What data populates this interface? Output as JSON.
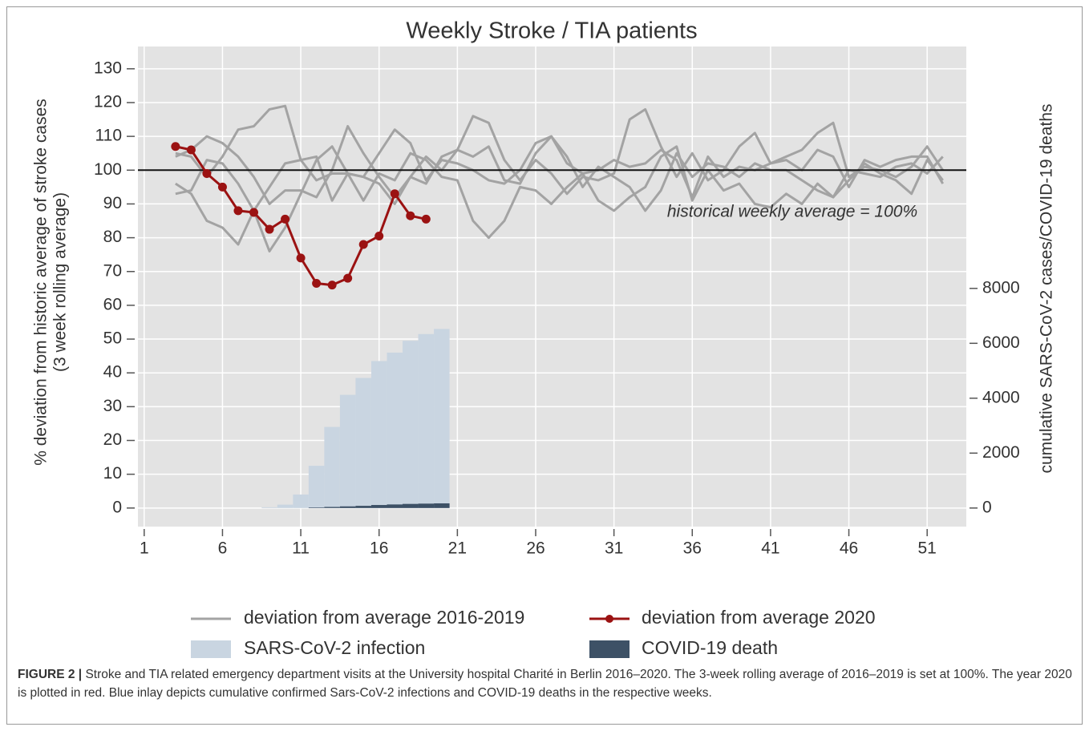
{
  "chart_data": {
    "type": "line",
    "title": "Weekly Stroke / TIA patients",
    "y_label": "% deviation from historic average of stroke cases",
    "y_label_sub": "(3 week rolling average)",
    "y2_label": "cumulative SARS-CoV-2 cases/COVID-19 deaths",
    "annotation": "historical weekly average = 100%",
    "reference_line": 100,
    "xlim": [
      0.6,
      53.5
    ],
    "xticks": [
      1,
      6,
      11,
      16,
      21,
      26,
      31,
      36,
      41,
      46,
      51
    ],
    "ylim": [
      -5.5,
      136.6
    ],
    "yticks": [
      0,
      10,
      20,
      30,
      40,
      50,
      60,
      70,
      80,
      90,
      100,
      110,
      120,
      130
    ],
    "y2lim": [
      -677,
      16812
    ],
    "y2ticks": [
      0,
      2000,
      4000,
      6000,
      8000
    ],
    "grid": true,
    "historical": {
      "name": "deviation from average 2016-2019",
      "color": "#a3a3a3",
      "x": [
        3,
        4,
        5,
        6,
        7,
        8,
        9,
        10,
        11,
        12,
        13,
        14,
        15,
        16,
        17,
        18,
        19,
        20,
        21,
        22,
        23,
        24,
        25,
        26,
        27,
        28,
        29,
        30,
        31,
        32,
        33,
        34,
        35,
        36,
        37,
        38,
        39,
        40,
        41,
        42,
        43,
        44,
        45,
        46,
        47,
        48,
        49,
        50,
        51,
        52
      ],
      "lines": [
        [
          104,
          106,
          110,
          108,
          104,
          98,
          90,
          94,
          94,
          92,
          100,
          113,
          105,
          98,
          92,
          98,
          104,
          100,
          106,
          104,
          107,
          97,
          96,
          105,
          110,
          104,
          95,
          101,
          98,
          95,
          88,
          94,
          105,
          98,
          102,
          101,
          98,
          102,
          100,
          100,
          97,
          94,
          92,
          97,
          102,
          99,
          97,
          93,
          103,
          97
        ],
        [
          96,
          93,
          85,
          83,
          78,
          88,
          95,
          102,
          103,
          104,
          91,
          99,
          91,
          99,
          97,
          105,
          103,
          98,
          97,
          85,
          80,
          85,
          95,
          94,
          90,
          95,
          99,
          91,
          88,
          92,
          95,
          104,
          107,
          91,
          100,
          94,
          96,
          90,
          89,
          93,
          90,
          96,
          92,
          100,
          99,
          98,
          101,
          102,
          99,
          104
        ],
        [
          93,
          94,
          103,
          102,
          96,
          88,
          76,
          83,
          93,
          103,
          107,
          99,
          98,
          105,
          112,
          108,
          97,
          103,
          102,
          100,
          97,
          96,
          100,
          108,
          110,
          102,
          99,
          100,
          103,
          101,
          102,
          106,
          103,
          92,
          104,
          98,
          101,
          100,
          102,
          103,
          100,
          106,
          104,
          95,
          103,
          101,
          103,
          104,
          104,
          96
        ],
        [
          105,
          104,
          98,
          104,
          112,
          113,
          118,
          119,
          103,
          97,
          99,
          99,
          98,
          96,
          90,
          98,
          96,
          104,
          106,
          116,
          114,
          103,
          97,
          103,
          99,
          93,
          98,
          97,
          99,
          115,
          118,
          107,
          98,
          105,
          97,
          100,
          107,
          111,
          102,
          104,
          106,
          111,
          114,
          98,
          101,
          100,
          98,
          101,
          107,
          100
        ]
      ]
    },
    "current": {
      "name": "deviation from average 2020",
      "color": "#9b1212",
      "x": [
        3,
        4,
        5,
        6,
        7,
        8,
        9,
        10,
        11,
        12,
        13,
        14,
        15,
        16,
        17,
        18,
        19
      ],
      "values": [
        107,
        106,
        99,
        95,
        88,
        87.5,
        82.5,
        85.5,
        74,
        66.5,
        66,
        68,
        78,
        80.5,
        93,
        86.5,
        85.5
      ]
    },
    "infections": {
      "name": "SARS-CoV-2 infection",
      "color": "#c9d5e1",
      "axis": "y2",
      "x": [
        9,
        10,
        11,
        12,
        13,
        14,
        15,
        16,
        17,
        18,
        19,
        20
      ],
      "values": [
        30,
        123,
        492,
        1538,
        2954,
        4123,
        4738,
        5354,
        5662,
        6092,
        6338,
        6523
      ]
    },
    "deaths": {
      "name": "COVID-19 death",
      "color": "#3d5166",
      "axis": "y2",
      "x": [
        12,
        13,
        14,
        15,
        16,
        17,
        18,
        19,
        20
      ],
      "values": [
        20,
        40,
        60,
        80,
        110,
        130,
        150,
        160,
        170
      ]
    }
  },
  "caption": {
    "label": "FIGURE 2 |",
    "text": "Stroke and TIA related emergency department visits at the University hospital Charité in Berlin 2016–2020. The 3-week rolling average of 2016–2019 is set at 100%. The year 2020 is plotted in red. Blue inlay depicts cumulative confirmed Sars-CoV-2 infections and COVID-19 deaths in the respective weeks."
  }
}
